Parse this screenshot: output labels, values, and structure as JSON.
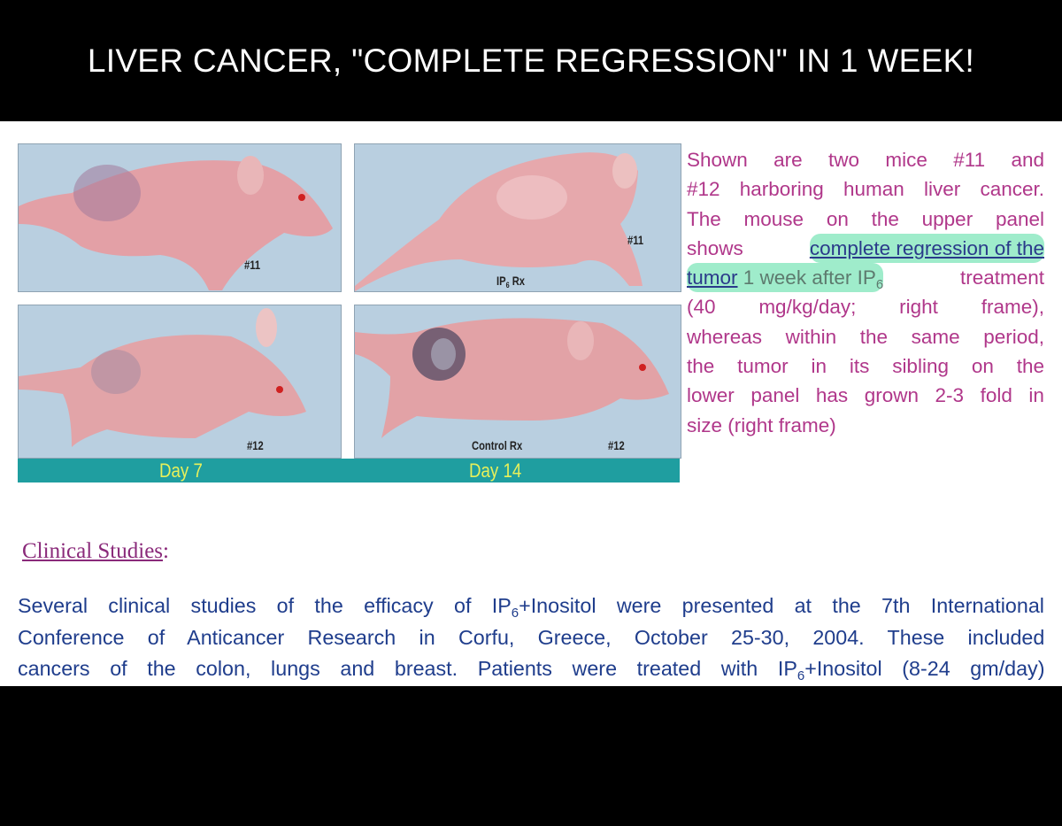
{
  "header": {
    "title": "LIVER CANCER, \"COMPLETE REGRESSION\" IN 1 WEEK!"
  },
  "figure": {
    "panels": [
      {
        "label": "#11"
      },
      {
        "label": "#11",
        "treatment_pre": "IP",
        "treatment_sub": "6",
        "treatment_post": " Rx"
      },
      {
        "label": "#12"
      },
      {
        "label": "#12",
        "treatment": "Control Rx"
      }
    ],
    "days": [
      "Day 7",
      "Day 14"
    ],
    "colors": {
      "day_bar": "#1f9ea0",
      "day_text": "#e8f05a",
      "background": "#b9cfe0",
      "mouse": "#e6a3a8"
    }
  },
  "caption": {
    "color": "#b0378a",
    "lines": [
      [
        "Shown",
        "are",
        "two",
        "mice",
        "#11",
        "and"
      ],
      [
        "#12",
        "harboring",
        "human",
        "liver",
        "cancer."
      ],
      [
        "The",
        "mouse",
        "on",
        "the",
        "upper",
        "panel"
      ],
      [
        "shows"
      ],
      [],
      [
        "(40",
        "mg/kg/day;",
        "right",
        "frame),"
      ],
      [
        "whereas",
        "within",
        "the",
        "same",
        "period,"
      ],
      [
        "the",
        "tumor",
        "in",
        "its",
        "sibling",
        "on",
        "the"
      ],
      [
        "lower",
        "panel",
        "has",
        "grown",
        "2-3",
        "fold",
        "in"
      ],
      [
        "size (right frame)"
      ]
    ],
    "highlight_1": "complete regression of the",
    "highlight_2": "tumor",
    "highlight_3": "1 week after IP",
    "highlight_sub": "6",
    "after": "treatment"
  },
  "clinical": {
    "heading": "Clinical Studies",
    "colon": ":",
    "lines": [
      {
        "pre": "Several clinical studies of the efficacy of IP",
        "sub": "6",
        "post": "+Inositol were presented at the 7th International"
      },
      {
        "text": "Conference of Anticancer Research in Corfu, Greece, October 25-30, 2004. These included"
      },
      {
        "pre": "cancers of the colon, lungs and breast. Patients were treated with IP",
        "sub": "6",
        "post": "+Inositol (8-24 gm/day)"
      }
    ]
  }
}
